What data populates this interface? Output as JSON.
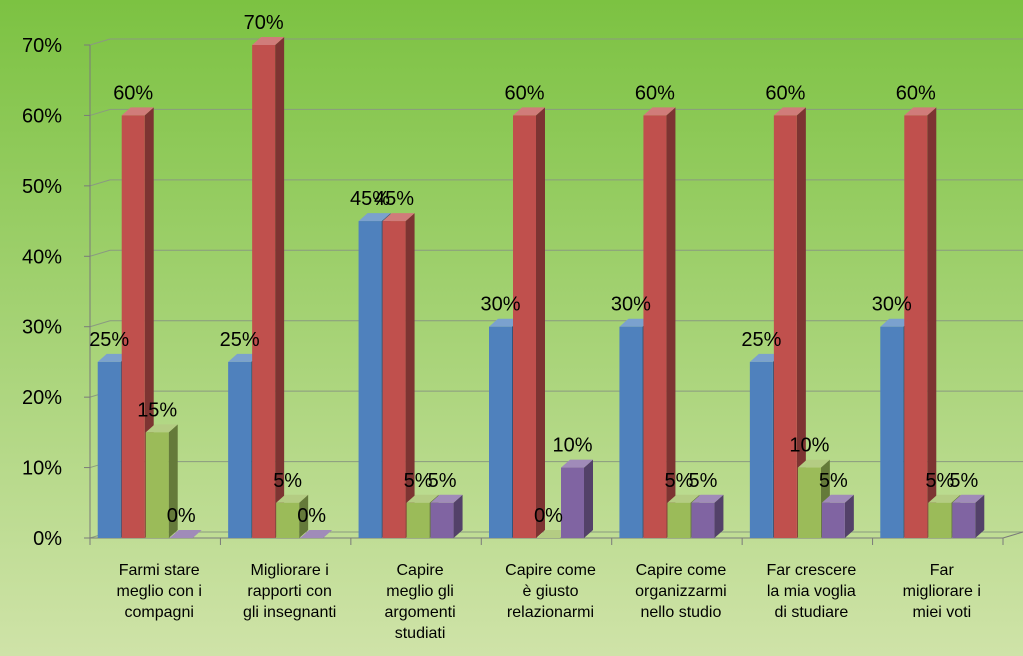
{
  "chart_data": {
    "type": "bar",
    "categories": [
      [
        "Farmi stare",
        "meglio con i",
        "compagni"
      ],
      [
        "Migliorare i",
        "rapporti con",
        "gli insegnanti"
      ],
      [
        "Capire",
        "meglio gli",
        "argomenti",
        "studiati"
      ],
      [
        "Capire come",
        "è giusto",
        "relazionarmi"
      ],
      [
        "Capire come",
        "organizzarmi",
        "nello studio"
      ],
      [
        "Far crescere",
        "la mia voglia",
        "di studiare"
      ],
      [
        "Far",
        "migliorare i",
        "miei voti"
      ]
    ],
    "series": [
      {
        "color": "#4F81BD",
        "values": [
          25,
          25,
          45,
          30,
          30,
          25,
          30
        ],
        "labels": [
          "25%",
          "25%",
          "45%",
          "30%",
          "30%",
          "25%",
          "30%"
        ]
      },
      {
        "color": "#C0504D",
        "values": [
          60,
          70,
          45,
          60,
          60,
          60,
          60
        ],
        "labels": [
          "60%",
          "70%",
          "45%",
          "60%",
          "60%",
          "60%",
          "60%"
        ]
      },
      {
        "color": "#9BBB59",
        "values": [
          15,
          5,
          5,
          0,
          5,
          10,
          5
        ],
        "labels": [
          "15%",
          "5%",
          "5%",
          "0%",
          "5%",
          "10%",
          "5%"
        ]
      },
      {
        "color": "#8064A2",
        "values": [
          0,
          0,
          5,
          10,
          5,
          5,
          5
        ],
        "labels": [
          "0%",
          "0%",
          "5%",
          "10%",
          "5%",
          "5%",
          "5%"
        ]
      }
    ],
    "y_ticks": [
      "0%",
      "10%",
      "20%",
      "30%",
      "40%",
      "50%",
      "60%",
      "70%"
    ],
    "ylim": [
      0,
      70
    ],
    "title": "",
    "xlabel": "",
    "ylabel": "",
    "grid": true,
    "legend": "none",
    "background_top": "#7CC242",
    "background_bottom": "#CFE3A8"
  }
}
